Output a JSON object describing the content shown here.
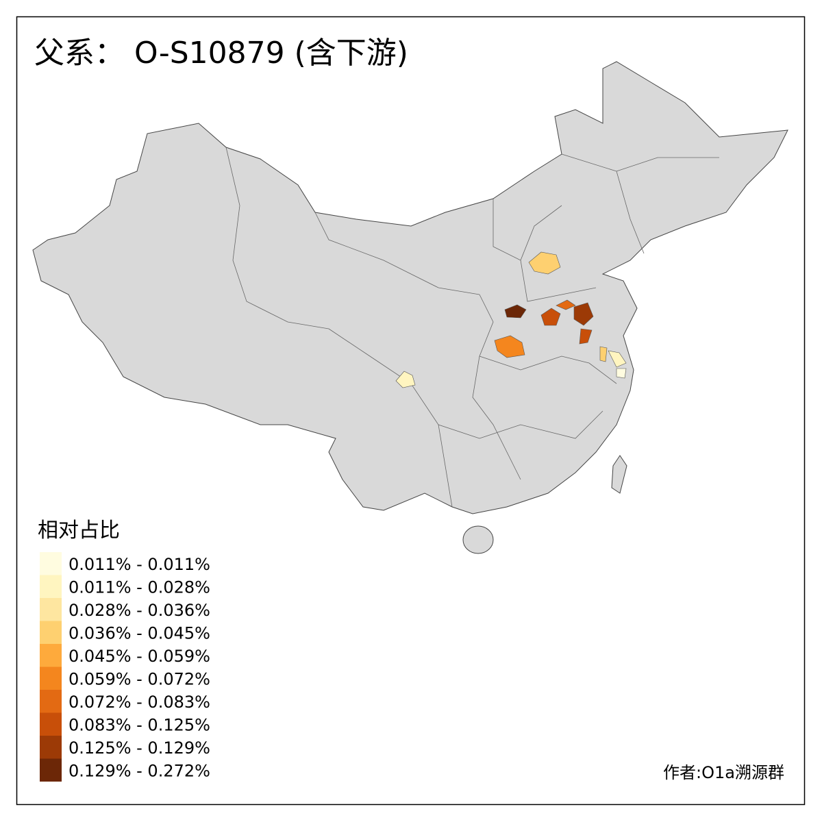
{
  "title": "父系： O-S10879 (含下游)",
  "legend": {
    "title": "相对占比",
    "items": [
      {
        "label": "0.011% - 0.011%",
        "color": "#fffce0"
      },
      {
        "label": "0.011% - 0.028%",
        "color": "#fff5c0"
      },
      {
        "label": "0.028% - 0.036%",
        "color": "#fee6a0"
      },
      {
        "label": "0.036% - 0.045%",
        "color": "#fed070"
      },
      {
        "label": "0.045% - 0.059%",
        "color": "#feaa3c"
      },
      {
        "label": "0.059% - 0.072%",
        "color": "#f4861e"
      },
      {
        "label": "0.072% - 0.083%",
        "color": "#e36a13"
      },
      {
        "label": "0.083% - 0.125%",
        "color": "#c84f09"
      },
      {
        "label": "0.125% - 0.129%",
        "color": "#9c3a06"
      },
      {
        "label": "0.129% - 0.272%",
        "color": "#6c2707"
      }
    ]
  },
  "credit": "作者:O1a溯源群"
}
